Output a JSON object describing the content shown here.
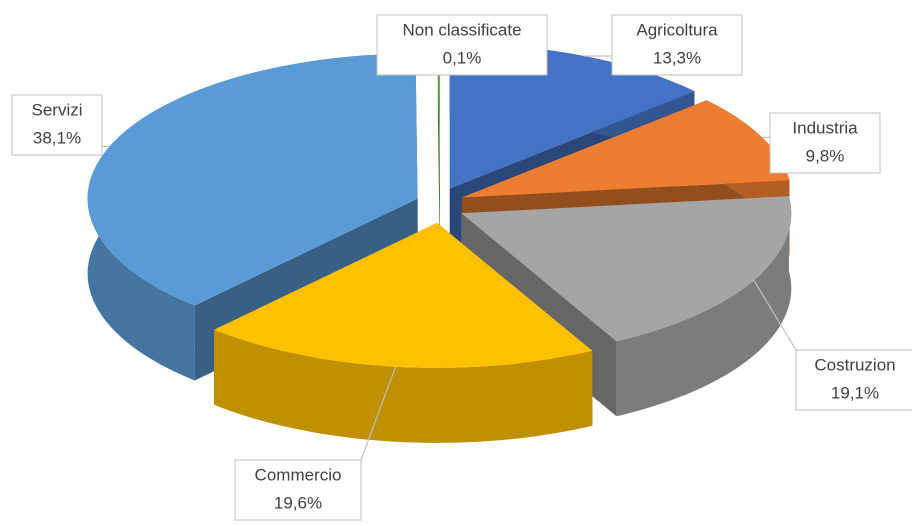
{
  "chart_data": {
    "type": "pie",
    "categories": [
      "Agricoltura",
      "Industria",
      "Costruzion",
      "Commercio",
      "Servizi",
      "Non classificate"
    ],
    "values": [
      13.3,
      9.8,
      19.1,
      19.6,
      38.1,
      0.1
    ],
    "value_labels": [
      "13,3%",
      "9,8%",
      "19,1%",
      "19,6%",
      "38,1%",
      "0,1%"
    ],
    "colors": [
      "#4472c4",
      "#ed7d31",
      "#a5a5a5",
      "#ffc000",
      "#5b9bd5",
      "#70ad47"
    ]
  }
}
